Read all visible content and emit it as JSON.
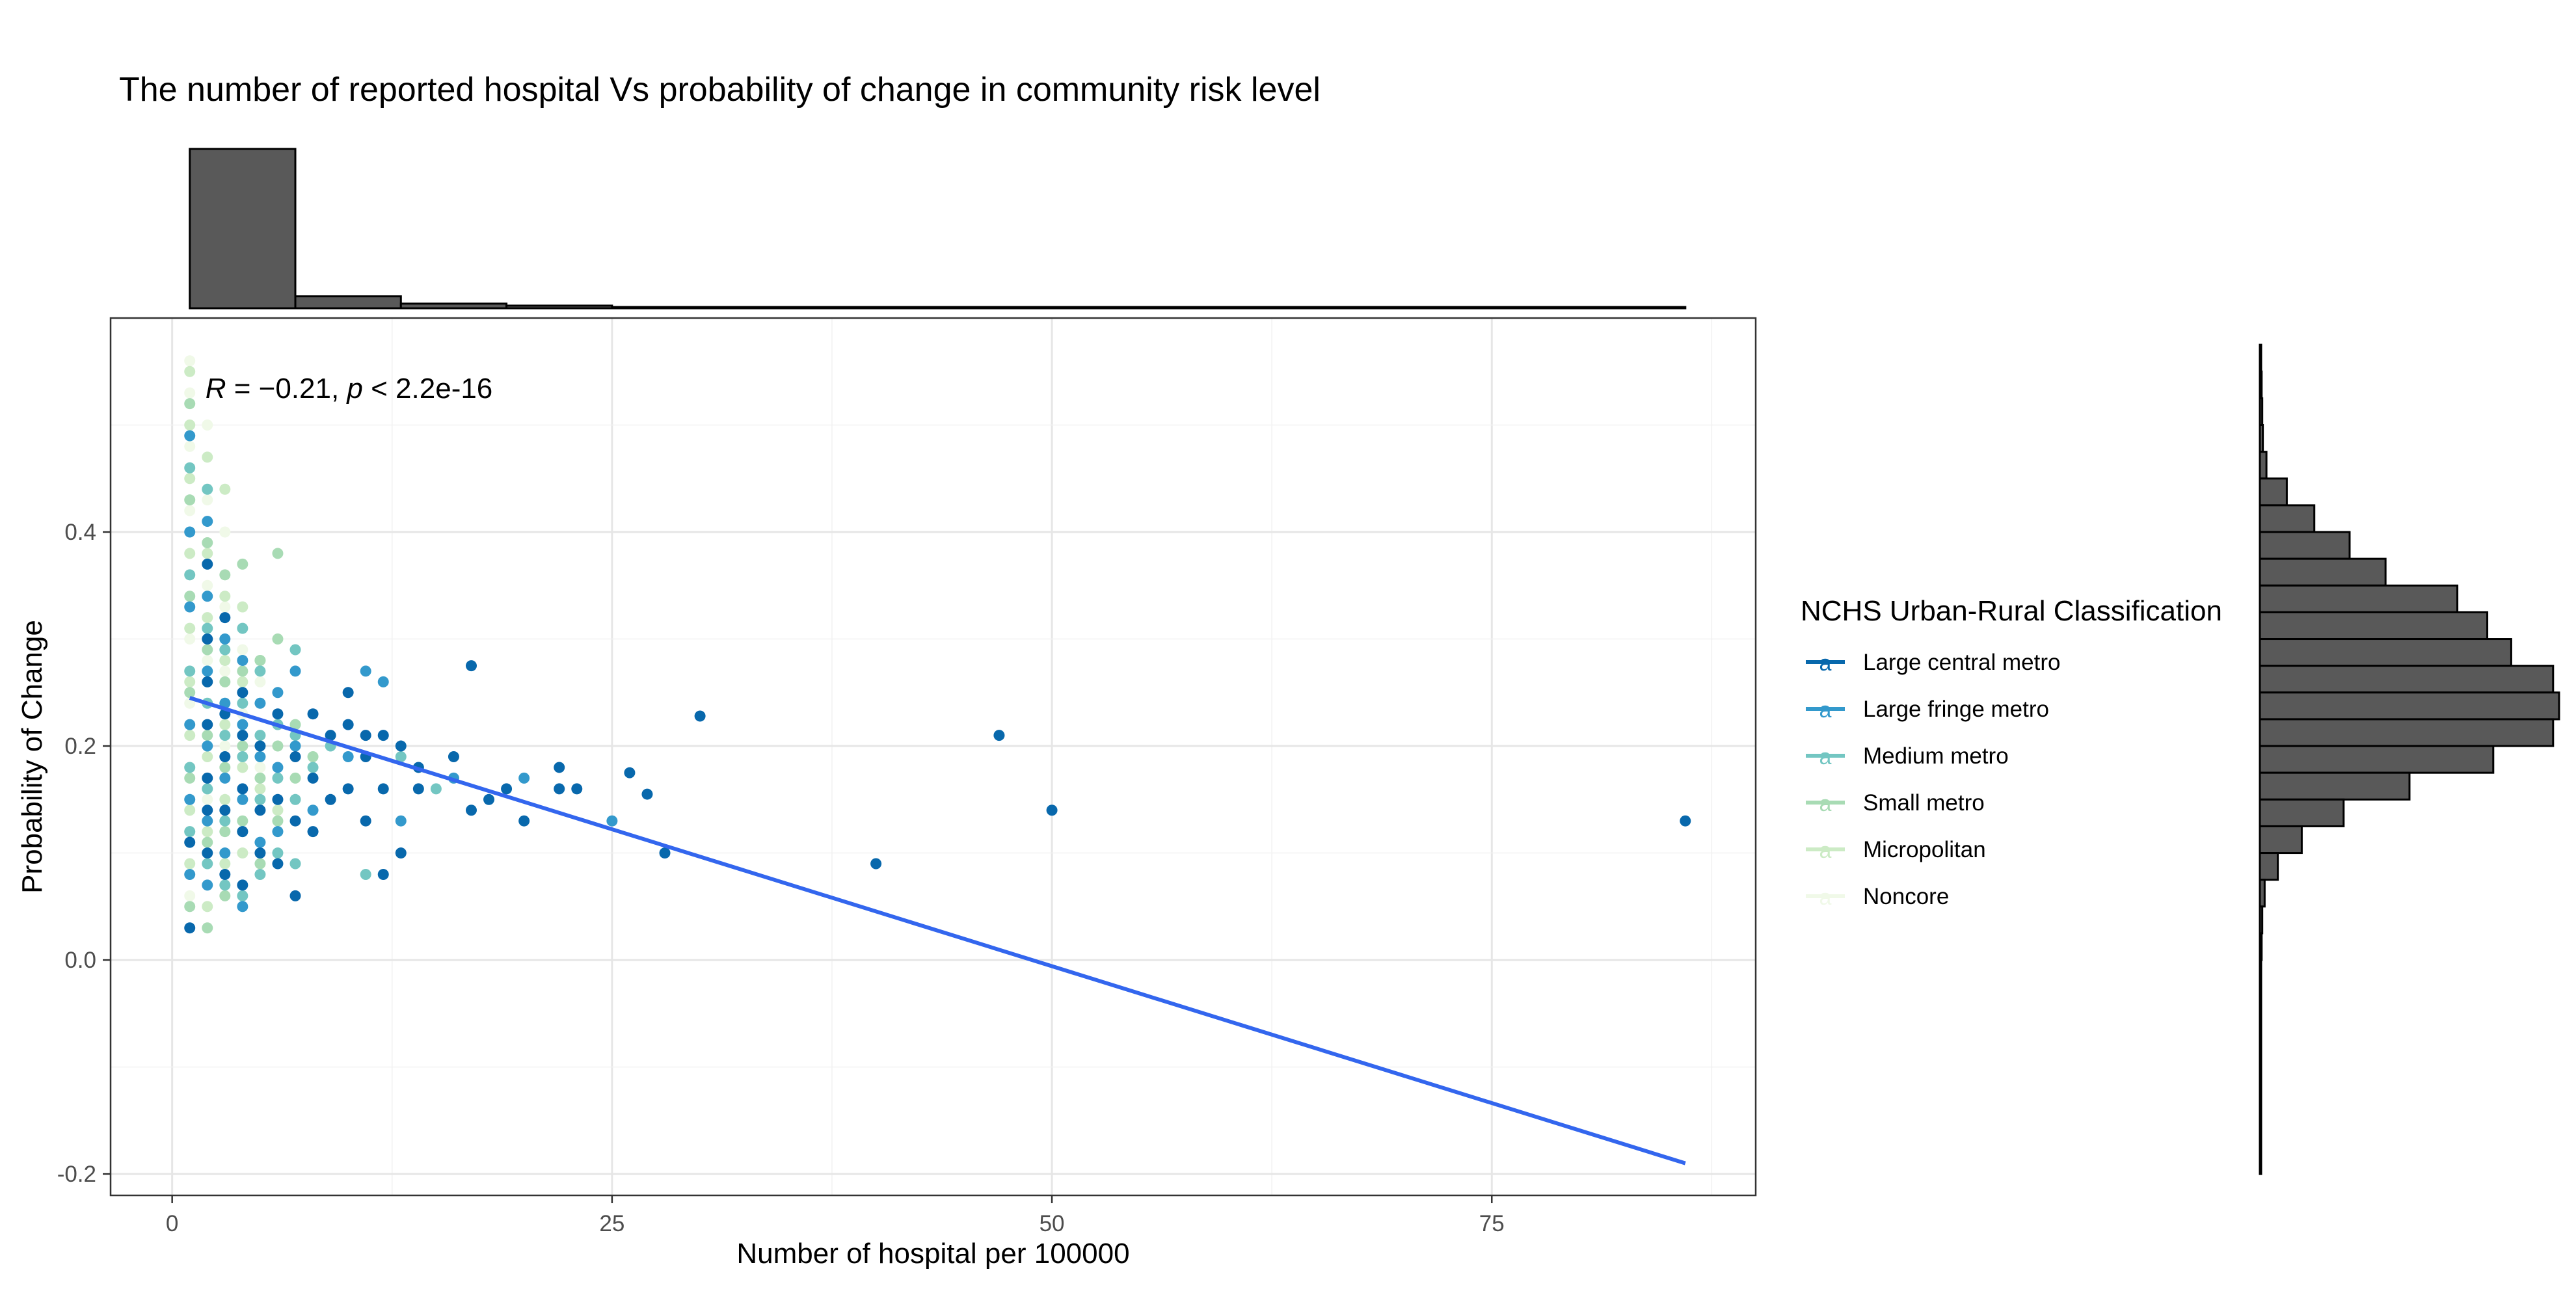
{
  "chart_data": {
    "type": "scatter",
    "title": "The number of reported hospital Vs probability of change in community risk level",
    "xlabel": "Number of hospital per 100000",
    "ylabel": "Probability of Change",
    "xlim": [
      -3.5,
      90
    ],
    "ylim": [
      -0.22,
      0.6
    ],
    "x_ticks": [
      0,
      25,
      50,
      75
    ],
    "y_ticks": [
      -0.2,
      0.0,
      0.2,
      0.4
    ],
    "x_tick_labels": [
      "0",
      "25",
      "50",
      "75"
    ],
    "y_tick_labels": [
      "-0.2",
      "0.0",
      "0.2",
      "0.4"
    ],
    "grid": true,
    "annotation": {
      "r_symbol": "R",
      "r_text": " = −0.21, ",
      "p_symbol": "p",
      "p_text": " < 2.2e-16",
      "x": 1,
      "y": 0.535
    },
    "regression_line": {
      "x": [
        1,
        86
      ],
      "y": [
        0.245,
        -0.19
      ],
      "color": "#3366ee"
    },
    "legend": {
      "title": "NCHS Urban-Rural Classification",
      "position": "right",
      "entries": [
        {
          "label": "Large central metro",
          "color": "#0868ac",
          "glyph": "a"
        },
        {
          "label": "Large fringe metro",
          "color": "#3399cc",
          "glyph": "a"
        },
        {
          "label": "Medium metro",
          "color": "#73c6c2",
          "glyph": "a"
        },
        {
          "label": "Small metro",
          "color": "#a8dbb4",
          "glyph": "a"
        },
        {
          "label": "Micropolitan",
          "color": "#ccebc5",
          "glyph": "a"
        },
        {
          "label": "Noncore",
          "color": "#f0f9e8",
          "glyph": "a"
        }
      ]
    },
    "series": [
      {
        "name": "Large central metro",
        "color": "#0868ac",
        "points": [
          [
            1,
            0.03
          ],
          [
            1,
            0.11
          ],
          [
            2,
            0.1
          ],
          [
            2,
            0.14
          ],
          [
            2,
            0.17
          ],
          [
            2,
            0.22
          ],
          [
            2,
            0.26
          ],
          [
            2,
            0.3
          ],
          [
            2,
            0.37
          ],
          [
            3,
            0.08
          ],
          [
            3,
            0.14
          ],
          [
            3,
            0.19
          ],
          [
            3,
            0.23
          ],
          [
            3,
            0.32
          ],
          [
            4,
            0.07
          ],
          [
            4,
            0.12
          ],
          [
            4,
            0.16
          ],
          [
            4,
            0.21
          ],
          [
            4,
            0.25
          ],
          [
            5,
            0.1
          ],
          [
            5,
            0.14
          ],
          [
            5,
            0.2
          ],
          [
            6,
            0.09
          ],
          [
            6,
            0.15
          ],
          [
            6,
            0.23
          ],
          [
            7,
            0.06
          ],
          [
            7,
            0.13
          ],
          [
            7,
            0.19
          ],
          [
            8,
            0.23
          ],
          [
            8,
            0.17
          ],
          [
            8,
            0.12
          ],
          [
            9,
            0.21
          ],
          [
            9,
            0.15
          ],
          [
            10,
            0.22
          ],
          [
            10,
            0.16
          ],
          [
            10,
            0.25
          ],
          [
            11,
            0.21
          ],
          [
            11,
            0.19
          ],
          [
            11,
            0.13
          ],
          [
            12,
            0.21
          ],
          [
            12,
            0.16
          ],
          [
            12,
            0.08
          ],
          [
            13,
            0.1
          ],
          [
            13,
            0.2
          ],
          [
            14,
            0.18
          ],
          [
            14,
            0.16
          ],
          [
            16,
            0.19
          ],
          [
            17,
            0.275
          ],
          [
            17,
            0.14
          ],
          [
            18,
            0.15
          ],
          [
            19,
            0.16
          ],
          [
            20,
            0.13
          ],
          [
            22,
            0.18
          ],
          [
            22,
            0.16
          ],
          [
            23,
            0.16
          ],
          [
            26,
            0.175
          ],
          [
            27,
            0.155
          ],
          [
            28,
            0.1
          ],
          [
            30,
            0.228
          ],
          [
            40,
            0.09
          ],
          [
            47,
            0.21
          ],
          [
            50,
            0.14
          ],
          [
            86,
            0.13
          ]
        ]
      },
      {
        "name": "Large fringe metro",
        "color": "#3399cc",
        "points": [
          [
            1,
            0.49
          ],
          [
            1,
            0.4
          ],
          [
            1,
            0.33
          ],
          [
            1,
            0.22
          ],
          [
            1,
            0.15
          ],
          [
            1,
            0.08
          ],
          [
            2,
            0.41
          ],
          [
            2,
            0.34
          ],
          [
            2,
            0.27
          ],
          [
            2,
            0.2
          ],
          [
            2,
            0.13
          ],
          [
            2,
            0.07
          ],
          [
            3,
            0.3
          ],
          [
            3,
            0.24
          ],
          [
            3,
            0.17
          ],
          [
            3,
            0.1
          ],
          [
            4,
            0.28
          ],
          [
            4,
            0.22
          ],
          [
            4,
            0.15
          ],
          [
            4,
            0.05
          ],
          [
            5,
            0.24
          ],
          [
            5,
            0.19
          ],
          [
            5,
            0.11
          ],
          [
            6,
            0.25
          ],
          [
            6,
            0.18
          ],
          [
            6,
            0.12
          ],
          [
            7,
            0.27
          ],
          [
            7,
            0.2
          ],
          [
            8,
            0.14
          ],
          [
            10,
            0.19
          ],
          [
            11,
            0.27
          ],
          [
            12,
            0.26
          ],
          [
            13,
            0.13
          ],
          [
            16,
            0.17
          ],
          [
            20,
            0.17
          ],
          [
            25,
            0.13
          ]
        ]
      },
      {
        "name": "Medium metro",
        "color": "#73c6c2",
        "points": [
          [
            1,
            0.46
          ],
          [
            1,
            0.36
          ],
          [
            1,
            0.27
          ],
          [
            1,
            0.18
          ],
          [
            1,
            0.12
          ],
          [
            2,
            0.44
          ],
          [
            2,
            0.31
          ],
          [
            2,
            0.24
          ],
          [
            2,
            0.16
          ],
          [
            2,
            0.09
          ],
          [
            3,
            0.29
          ],
          [
            3,
            0.21
          ],
          [
            3,
            0.13
          ],
          [
            3,
            0.07
          ],
          [
            4,
            0.31
          ],
          [
            4,
            0.24
          ],
          [
            4,
            0.19
          ],
          [
            4,
            0.12
          ],
          [
            4,
            0.06
          ],
          [
            5,
            0.27
          ],
          [
            5,
            0.21
          ],
          [
            5,
            0.15
          ],
          [
            5,
            0.08
          ],
          [
            6,
            0.22
          ],
          [
            6,
            0.17
          ],
          [
            6,
            0.1
          ],
          [
            7,
            0.29
          ],
          [
            7,
            0.21
          ],
          [
            7,
            0.15
          ],
          [
            7,
            0.09
          ],
          [
            8,
            0.18
          ],
          [
            9,
            0.2
          ],
          [
            11,
            0.08
          ],
          [
            13,
            0.19
          ],
          [
            15,
            0.16
          ]
        ]
      },
      {
        "name": "Small metro",
        "color": "#a8dbb4",
        "points": [
          [
            1,
            0.52
          ],
          [
            1,
            0.43
          ],
          [
            1,
            0.34
          ],
          [
            1,
            0.25
          ],
          [
            1,
            0.17
          ],
          [
            1,
            0.05
          ],
          [
            2,
            0.39
          ],
          [
            2,
            0.29
          ],
          [
            2,
            0.21
          ],
          [
            2,
            0.11
          ],
          [
            2,
            0.03
          ],
          [
            3,
            0.36
          ],
          [
            3,
            0.26
          ],
          [
            3,
            0.18
          ],
          [
            3,
            0.12
          ],
          [
            3,
            0.06
          ],
          [
            4,
            0.37
          ],
          [
            4,
            0.27
          ],
          [
            4,
            0.2
          ],
          [
            4,
            0.13
          ],
          [
            5,
            0.28
          ],
          [
            5,
            0.17
          ],
          [
            5,
            0.09
          ],
          [
            6,
            0.38
          ],
          [
            6,
            0.3
          ],
          [
            6,
            0.2
          ],
          [
            6,
            0.13
          ],
          [
            7,
            0.22
          ],
          [
            7,
            0.17
          ],
          [
            8,
            0.19
          ]
        ]
      },
      {
        "name": "Micropolitan",
        "color": "#ccebc5",
        "points": [
          [
            1,
            0.55
          ],
          [
            1,
            0.5
          ],
          [
            1,
            0.45
          ],
          [
            1,
            0.38
          ],
          [
            1,
            0.31
          ],
          [
            1,
            0.26
          ],
          [
            1,
            0.21
          ],
          [
            1,
            0.14
          ],
          [
            1,
            0.09
          ],
          [
            2,
            0.47
          ],
          [
            2,
            0.38
          ],
          [
            2,
            0.32
          ],
          [
            2,
            0.26
          ],
          [
            2,
            0.19
          ],
          [
            2,
            0.12
          ],
          [
            2,
            0.05
          ],
          [
            3,
            0.44
          ],
          [
            3,
            0.34
          ],
          [
            3,
            0.28
          ],
          [
            3,
            0.22
          ],
          [
            3,
            0.15
          ],
          [
            3,
            0.09
          ],
          [
            4,
            0.33
          ],
          [
            4,
            0.26
          ],
          [
            4,
            0.18
          ],
          [
            4,
            0.1
          ],
          [
            5,
            0.28
          ],
          [
            5,
            0.16
          ],
          [
            6,
            0.14
          ]
        ]
      },
      {
        "name": "Noncore",
        "color": "#f0f9e8",
        "points": [
          [
            1,
            0.56
          ],
          [
            1,
            0.53
          ],
          [
            1,
            0.48
          ],
          [
            1,
            0.42
          ],
          [
            1,
            0.36
          ],
          [
            1,
            0.3
          ],
          [
            1,
            0.24
          ],
          [
            1,
            0.18
          ],
          [
            1,
            0.12
          ],
          [
            1,
            0.06
          ],
          [
            2,
            0.5
          ],
          [
            2,
            0.43
          ],
          [
            2,
            0.35
          ],
          [
            2,
            0.28
          ],
          [
            2,
            0.22
          ],
          [
            2,
            0.15
          ],
          [
            3,
            0.4
          ],
          [
            3,
            0.33
          ],
          [
            3,
            0.27
          ],
          [
            3,
            0.2
          ],
          [
            4,
            0.29
          ],
          [
            4,
            0.23
          ],
          [
            5,
            0.26
          ],
          [
            5,
            0.18
          ]
        ]
      }
    ],
    "x_histogram": {
      "bin_width": 6,
      "bins": [
        [
          1,
          7,
          1200
        ],
        [
          7,
          13,
          90
        ],
        [
          13,
          19,
          35
        ],
        [
          19,
          25,
          20
        ],
        [
          25,
          31,
          9
        ],
        [
          31,
          37,
          4
        ],
        [
          37,
          43,
          3
        ],
        [
          43,
          49,
          2
        ],
        [
          49,
          55,
          2
        ],
        [
          55,
          61,
          1
        ],
        [
          61,
          67,
          1
        ],
        [
          67,
          73,
          1
        ],
        [
          73,
          79,
          1
        ],
        [
          79,
          85,
          1
        ],
        [
          85,
          86,
          1
        ]
      ]
    },
    "y_histogram": {
      "bins": [
        [
          0.55,
          0.575,
          2
        ],
        [
          0.525,
          0.55,
          3
        ],
        [
          0.5,
          0.525,
          4
        ],
        [
          0.475,
          0.5,
          5
        ],
        [
          0.45,
          0.475,
          11
        ],
        [
          0.425,
          0.45,
          45
        ],
        [
          0.4,
          0.425,
          91
        ],
        [
          0.375,
          0.4,
          150
        ],
        [
          0.35,
          0.375,
          210
        ],
        [
          0.325,
          0.35,
          330
        ],
        [
          0.3,
          0.325,
          380
        ],
        [
          0.275,
          0.3,
          420
        ],
        [
          0.25,
          0.275,
          490
        ],
        [
          0.225,
          0.25,
          500
        ],
        [
          0.2,
          0.225,
          490
        ],
        [
          0.175,
          0.2,
          390
        ],
        [
          0.15,
          0.175,
          250
        ],
        [
          0.125,
          0.15,
          140
        ],
        [
          0.1,
          0.125,
          70
        ],
        [
          0.075,
          0.1,
          30
        ],
        [
          0.05,
          0.075,
          8
        ],
        [
          0.025,
          0.05,
          4
        ],
        [
          0.0,
          0.025,
          3
        ],
        [
          -0.025,
          0.0,
          2
        ],
        [
          -0.05,
          -0.025,
          2
        ],
        [
          -0.075,
          -0.05,
          2
        ],
        [
          -0.1,
          -0.075,
          1
        ],
        [
          -0.125,
          -0.1,
          1
        ],
        [
          -0.15,
          -0.125,
          1
        ],
        [
          -0.175,
          -0.15,
          1
        ],
        [
          -0.2,
          -0.175,
          1
        ]
      ]
    }
  }
}
